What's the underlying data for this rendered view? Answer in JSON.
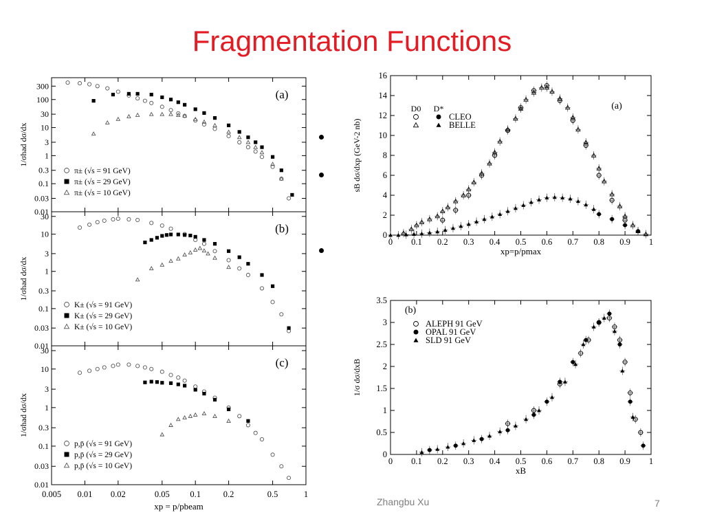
{
  "slide": {
    "title": "Fragmentation Functions",
    "footer_author": "Zhangbu Xu",
    "page_number": "7",
    "title_color": "#e31b23",
    "bullets": [
      "",
      "",
      ""
    ]
  },
  "chart_data": [
    {
      "type": "scatter",
      "panel_label": "(a)",
      "xscale": "log",
      "yscale": "log",
      "xlim": [
        0.005,
        1
      ],
      "ylim": [
        0.01,
        600
      ],
      "ytick_labels": [
        "300",
        "100",
        "30",
        "10",
        "3",
        "1",
        "0.3",
        "0.1",
        "0.03",
        "0.01"
      ],
      "ylabel": "1/σhad dσ/dx",
      "legend_placement": "lower-left",
      "series": [
        {
          "name": "π± (√s = 91 GeV)",
          "marker": "open-circle",
          "x": [
            0.007,
            0.009,
            0.011,
            0.013,
            0.016,
            0.02,
            0.025,
            0.03,
            0.035,
            0.04,
            0.05,
            0.06,
            0.07,
            0.08,
            0.1,
            0.12,
            0.15,
            0.2,
            0.25,
            0.3,
            0.35,
            0.4,
            0.5,
            0.6,
            0.7
          ],
          "y": [
            400,
            380,
            350,
            300,
            250,
            190,
            140,
            110,
            90,
            75,
            55,
            42,
            32,
            26,
            18,
            13,
            9,
            5,
            3,
            2,
            1.4,
            0.9,
            0.4,
            0.15,
            0.03
          ]
        },
        {
          "name": "π± (√s = 29 GeV)",
          "marker": "filled-square",
          "x": [
            0.012,
            0.018,
            0.025,
            0.03,
            0.04,
            0.05,
            0.06,
            0.07,
            0.08,
            0.1,
            0.12,
            0.15,
            0.2,
            0.25,
            0.3,
            0.35,
            0.4,
            0.5,
            0.6,
            0.75
          ],
          "y": [
            90,
            150,
            160,
            160,
            150,
            120,
            100,
            80,
            65,
            45,
            33,
            22,
            12,
            7,
            4.5,
            3,
            2,
            0.9,
            0.3,
            0.04
          ]
        },
        {
          "name": "π± (√s = 10 GeV)",
          "marker": "open-triangle",
          "x": [
            0.012,
            0.016,
            0.02,
            0.025,
            0.03,
            0.04,
            0.05,
            0.06,
            0.07,
            0.08,
            0.1,
            0.12,
            0.15,
            0.2,
            0.25,
            0.3,
            0.35,
            0.4,
            0.5,
            0.6
          ],
          "y": [
            6,
            15,
            20,
            25,
            28,
            30,
            30,
            30,
            28,
            26,
            20,
            16,
            12,
            7,
            4.5,
            3,
            2,
            1.3,
            0.5,
            0.15
          ]
        }
      ]
    },
    {
      "type": "scatter",
      "panel_label": "(b)",
      "xscale": "log",
      "yscale": "log",
      "xlim": [
        0.005,
        1
      ],
      "ylim": [
        0.01,
        40
      ],
      "ytick_labels": [
        "30",
        "10",
        "3",
        "1",
        "0.3",
        "0.1",
        "0.03",
        "0.01"
      ],
      "ylabel": "1/σhad dσ/dx",
      "legend_placement": "lower-left",
      "series": [
        {
          "name": "K± (√s = 91 GeV)",
          "marker": "open-circle",
          "x": [
            0.009,
            0.011,
            0.013,
            0.015,
            0.018,
            0.02,
            0.025,
            0.03,
            0.04,
            0.05,
            0.06,
            0.08,
            0.1,
            0.12,
            0.15,
            0.2,
            0.25,
            0.3,
            0.4,
            0.5,
            0.6,
            0.7
          ],
          "y": [
            15,
            18,
            21,
            23,
            25,
            26,
            25,
            24,
            20,
            17,
            14,
            10,
            7,
            5.5,
            3.5,
            2,
            1.2,
            0.8,
            0.35,
            0.15,
            0.07,
            0.025
          ]
        },
        {
          "name": "K± (√s = 29 GeV)",
          "marker": "filled-square",
          "x": [
            0.035,
            0.04,
            0.045,
            0.05,
            0.055,
            0.06,
            0.07,
            0.08,
            0.09,
            0.1,
            0.12,
            0.15,
            0.2,
            0.25,
            0.3,
            0.4,
            0.5,
            0.7
          ],
          "y": [
            6,
            7,
            8,
            9,
            9.5,
            9.8,
            9.8,
            9.5,
            9.2,
            8.5,
            7,
            5.5,
            3.5,
            2.4,
            1.6,
            0.8,
            0.4,
            0.03
          ]
        },
        {
          "name": "K± (√s = 10 GeV)",
          "marker": "open-triangle",
          "x": [
            0.03,
            0.04,
            0.05,
            0.06,
            0.07,
            0.08,
            0.09,
            0.1,
            0.11,
            0.12,
            0.13,
            0.15,
            0.2
          ],
          "y": [
            0.6,
            1.2,
            1.5,
            1.9,
            2.2,
            2.8,
            3.2,
            3.8,
            4.2,
            3.6,
            3.0,
            2.3,
            1.3
          ]
        }
      ]
    },
    {
      "type": "scatter",
      "panel_label": "(c)",
      "xscale": "log",
      "yscale": "log",
      "xlim": [
        0.005,
        1
      ],
      "ylim": [
        0.01,
        40
      ],
      "xticks": [
        0.005,
        0.01,
        0.02,
        0.05,
        0.1,
        0.2,
        0.5,
        1
      ],
      "xtick_labels": [
        "0.005",
        "0.01",
        "0.02",
        "0.05",
        "0.1",
        "0.2",
        "0.5",
        "1"
      ],
      "ytick_labels": [
        "30",
        "10",
        "3",
        "1",
        "0.3",
        "0.1",
        "0.03",
        "0.01"
      ],
      "xlabel": "xp = p/pbeam",
      "ylabel": "1/σhad dσ/dx",
      "legend_placement": "lower-left",
      "series": [
        {
          "name": "p,p̄ (√s = 91 GeV)",
          "marker": "open-circle",
          "x": [
            0.009,
            0.011,
            0.013,
            0.015,
            0.018,
            0.02,
            0.025,
            0.03,
            0.035,
            0.04,
            0.05,
            0.06,
            0.07,
            0.08,
            0.1,
            0.12,
            0.15,
            0.2,
            0.25,
            0.3,
            0.35,
            0.4,
            0.5,
            0.6,
            0.7
          ],
          "y": [
            8,
            9,
            10,
            11,
            12,
            13,
            13,
            12,
            11,
            10,
            8.5,
            7,
            6,
            5,
            3.5,
            2.6,
            1.8,
            1,
            0.6,
            0.35,
            0.22,
            0.15,
            0.06,
            0.03,
            0.015
          ]
        },
        {
          "name": "p,p̄ (√s = 29 GeV)",
          "marker": "filled-square",
          "x": [
            0.035,
            0.04,
            0.045,
            0.05,
            0.06,
            0.07,
            0.08,
            0.1,
            0.12,
            0.15,
            0.2,
            0.3
          ],
          "y": [
            4.5,
            4.7,
            4.6,
            4.4,
            4.3,
            4.0,
            3.7,
            2.9,
            2.3,
            1.6,
            0.9,
            0.45
          ]
        },
        {
          "name": "p,p̄ (√s = 10 GeV)",
          "marker": "open-triangle",
          "x": [
            0.05,
            0.06,
            0.07,
            0.08,
            0.09,
            0.1,
            0.12,
            0.15,
            0.2
          ],
          "y": [
            0.2,
            0.35,
            0.5,
            0.55,
            0.6,
            0.65,
            0.7,
            0.6,
            0.45
          ]
        }
      ]
    },
    {
      "type": "scatter",
      "panel_label": "(a)",
      "xlim": [
        0,
        1
      ],
      "ylim": [
        0,
        16
      ],
      "xticks": [
        0,
        0.1,
        0.2,
        0.3,
        0.4,
        0.5,
        0.6,
        0.7,
        0.8,
        0.9,
        1
      ],
      "xtick_labels": [
        "0",
        "0.1",
        "0.2",
        "0.3",
        "0.4",
        "0.5",
        "0.6",
        "0.7",
        "0.8",
        "0.9",
        "1"
      ],
      "yticks": [
        0,
        2,
        4,
        6,
        8,
        10,
        12,
        14,
        16
      ],
      "ytick_labels": [
        "0",
        "2",
        "4",
        "6",
        "8",
        "10",
        "12",
        "14",
        "16"
      ],
      "xlabel": "xp=p/pmax",
      "ylabel": "sB dσ/dxp (GeV-2 nb)",
      "legend_columns": [
        "D0",
        "D*"
      ],
      "legend_rows": [
        "CLEO",
        "BELLE"
      ],
      "legend_placement": "top-left",
      "series": [
        {
          "name": "CLEO D0",
          "marker": "open-circle",
          "x": [
            0.2,
            0.25,
            0.3,
            0.35,
            0.4,
            0.45,
            0.5,
            0.55,
            0.6,
            0.65,
            0.7,
            0.75,
            0.8,
            0.85,
            0.9
          ],
          "y": [
            1.5,
            2.5,
            4,
            6,
            8,
            10.5,
            12.8,
            14.5,
            15,
            13.5,
            11.5,
            9,
            6,
            3.5,
            1.5
          ]
        },
        {
          "name": "BELLE D0",
          "marker": "open-triangle",
          "x": [
            0.05,
            0.08,
            0.1,
            0.12,
            0.15,
            0.18,
            0.2,
            0.22,
            0.25,
            0.28,
            0.3,
            0.32,
            0.35,
            0.38,
            0.4,
            0.42,
            0.45,
            0.48,
            0.5,
            0.52,
            0.55,
            0.58,
            0.6,
            0.62,
            0.65,
            0.68,
            0.7,
            0.72,
            0.75,
            0.78,
            0.8,
            0.82,
            0.85,
            0.88,
            0.9,
            0.93,
            0.95,
            0.98
          ],
          "y": [
            0.2,
            0.6,
            1.0,
            1.3,
            1.6,
            1.9,
            2.4,
            2.8,
            3.4,
            4.0,
            4.6,
            5.3,
            6.2,
            7.2,
            8.3,
            9.4,
            10.6,
            11.7,
            12.7,
            13.6,
            14.3,
            14.8,
            14.8,
            14.4,
            13.7,
            12.8,
            11.8,
            10.6,
            9.3,
            8.0,
            6.7,
            5.4,
            4.1,
            2.9,
            1.9,
            1.0,
            0.4,
            0.1
          ]
        },
        {
          "name": "CLEO D*",
          "marker": "filled-circle",
          "x": [
            0.8,
            0.85,
            0.9,
            0.95
          ],
          "y": [
            2.1,
            1.6,
            1.0,
            0.4
          ]
        },
        {
          "name": "BELLE D*",
          "marker": "filled-triangle",
          "x": [
            0.0,
            0.03,
            0.06,
            0.09,
            0.12,
            0.15,
            0.18,
            0.21,
            0.24,
            0.27,
            0.3,
            0.33,
            0.36,
            0.39,
            0.42,
            0.45,
            0.48,
            0.51,
            0.54,
            0.57,
            0.6,
            0.63,
            0.66,
            0.69,
            0.72,
            0.75,
            0.78
          ],
          "y": [
            0,
            0,
            0.05,
            0.1,
            0.15,
            0.25,
            0.35,
            0.5,
            0.7,
            0.9,
            1.1,
            1.35,
            1.6,
            1.85,
            2.1,
            2.4,
            2.7,
            3.0,
            3.3,
            3.55,
            3.75,
            3.8,
            3.75,
            3.65,
            3.4,
            3.05,
            2.6
          ]
        }
      ]
    },
    {
      "type": "scatter",
      "panel_label": "(b)",
      "xlim": [
        0,
        1
      ],
      "ylim": [
        0,
        3.5
      ],
      "xticks": [
        0,
        0.1,
        0.2,
        0.3,
        0.4,
        0.5,
        0.6,
        0.7,
        0.8,
        0.9,
        1
      ],
      "xtick_labels": [
        "0",
        "0.1",
        "0.2",
        "0.3",
        "0.4",
        "0.5",
        "0.6",
        "0.7",
        "0.8",
        "0.9",
        "1"
      ],
      "yticks": [
        0,
        0.5,
        1,
        1.5,
        2,
        2.5,
        3,
        3.5
      ],
      "ytick_labels": [
        "0",
        "0.5",
        "1",
        "1.5",
        "2",
        "2.5",
        "3",
        "3.5"
      ],
      "xlabel": "xB",
      "ylabel": "1/σ dσ/dxB",
      "legend_placement": "top-left",
      "series": [
        {
          "name": "ALEPH 91 GeV",
          "marker": "open-circle",
          "x": [
            0.45,
            0.55,
            0.65,
            0.73,
            0.76,
            0.8,
            0.84,
            0.86,
            0.88,
            0.9,
            0.92,
            0.94,
            0.96
          ],
          "y": [
            0.7,
            1.0,
            1.6,
            2.3,
            2.6,
            3.0,
            3.1,
            2.9,
            2.6,
            2.1,
            1.4,
            0.8,
            0.5
          ]
        },
        {
          "name": "OPAL 91 GeV",
          "marker": "filled-circle",
          "x": [
            0.15,
            0.25,
            0.35,
            0.45,
            0.55,
            0.6,
            0.65,
            0.7,
            0.75,
            0.8,
            0.84,
            0.88,
            0.92,
            0.97
          ],
          "y": [
            0.1,
            0.2,
            0.35,
            0.55,
            0.9,
            1.2,
            1.65,
            2.1,
            2.6,
            3.0,
            3.2,
            2.5,
            1.2,
            0.2
          ]
        },
        {
          "name": "SLD 91 GeV",
          "marker": "filled-triangle",
          "x": [
            0.12,
            0.18,
            0.22,
            0.28,
            0.32,
            0.38,
            0.42,
            0.48,
            0.52,
            0.57,
            0.62,
            0.67,
            0.71,
            0.74,
            0.78,
            0.82,
            0.86,
            0.89,
            0.93
          ],
          "y": [
            0.05,
            0.12,
            0.17,
            0.25,
            0.32,
            0.42,
            0.52,
            0.65,
            0.8,
            1.0,
            1.3,
            1.65,
            2.05,
            2.5,
            2.9,
            3.1,
            2.8,
            1.9,
            0.85
          ]
        }
      ]
    }
  ]
}
